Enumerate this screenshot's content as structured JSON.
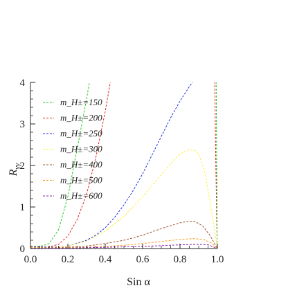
{
  "chart_data": {
    "type": "line",
    "xlabel": "Sin α",
    "ylabel": "R_γγ",
    "xlim": [
      0,
      1
    ],
    "ylim": [
      0,
      4
    ],
    "x_ticks": [
      "0.0",
      "0.2",
      "0.4",
      "0.6",
      "0.8",
      "1.0"
    ],
    "y_ticks": [
      "0",
      "1",
      "2",
      "3",
      "4"
    ],
    "grid": false,
    "legend_placement": "top-left",
    "series": [
      {
        "name": "m_H±=150",
        "color": "#22cc22",
        "x": [
          0,
          0.05,
          0.1,
          0.15,
          0.2,
          0.25,
          0.3,
          0.35
        ],
        "y": [
          0.06,
          0.05,
          0.12,
          0.45,
          1.25,
          2.4,
          3.6,
          4.9
        ]
      },
      {
        "name": "m_H±=200",
        "color": "#dd2222",
        "x": [
          0,
          0.05,
          0.1,
          0.15,
          0.2,
          0.25,
          0.3,
          0.35,
          0.4,
          0.45
        ],
        "y": [
          0.05,
          0.04,
          0.04,
          0.1,
          0.3,
          0.7,
          1.3,
          2.2,
          3.3,
          4.6
        ]
      },
      {
        "name": "m_H±=250",
        "color": "#2233dd",
        "x": [
          0,
          0.1,
          0.2,
          0.3,
          0.35,
          0.4,
          0.45,
          0.5,
          0.55,
          0.6,
          0.65,
          0.7,
          0.75,
          0.8,
          0.85,
          0.9,
          0.93,
          0.96
        ],
        "y": [
          0.04,
          0.03,
          0.06,
          0.2,
          0.32,
          0.5,
          0.75,
          1.05,
          1.4,
          1.8,
          2.25,
          2.7,
          3.15,
          3.55,
          3.9,
          4.2,
          4.5,
          4.9
        ]
      },
      {
        "name": "m_H±=300",
        "color": "#ffee44",
        "x": [
          0,
          0.1,
          0.2,
          0.3,
          0.4,
          0.5,
          0.6,
          0.7,
          0.75,
          0.8,
          0.85,
          0.88,
          0.9,
          0.93,
          0.96,
          1.0
        ],
        "y": [
          0.03,
          0.02,
          0.06,
          0.18,
          0.42,
          0.78,
          1.25,
          1.78,
          2.05,
          2.28,
          2.38,
          2.36,
          2.28,
          1.9,
          1.15,
          0
        ]
      },
      {
        "name": "m_H±=400",
        "color": "#a0522d",
        "x": [
          0,
          0.1,
          0.2,
          0.3,
          0.4,
          0.5,
          0.6,
          0.7,
          0.8,
          0.85,
          0.88,
          0.92,
          0.96,
          1.0
        ],
        "y": [
          0.02,
          0.02,
          0.03,
          0.06,
          0.12,
          0.2,
          0.32,
          0.48,
          0.62,
          0.66,
          0.65,
          0.55,
          0.32,
          0
        ]
      },
      {
        "name": "m_H±=500",
        "color": "#ff9922",
        "x": [
          0,
          0.1,
          0.2,
          0.3,
          0.4,
          0.5,
          0.6,
          0.7,
          0.8,
          0.88,
          0.93,
          0.97,
          1.0
        ],
        "y": [
          0.02,
          0.01,
          0.02,
          0.03,
          0.05,
          0.08,
          0.12,
          0.17,
          0.22,
          0.24,
          0.21,
          0.13,
          0
        ]
      },
      {
        "name": "m_H±=600",
        "color": "#8822aa",
        "x": [
          0,
          0.1,
          0.2,
          0.3,
          0.4,
          0.5,
          0.6,
          0.7,
          0.8,
          0.9,
          0.95,
          1.0
        ],
        "y": [
          0.01,
          0.01,
          0.01,
          0.02,
          0.03,
          0.04,
          0.05,
          0.07,
          0.09,
          0.1,
          0.09,
          0
        ]
      },
      {
        "name": "",
        "color": "#dd2222",
        "x": [
          0.985,
          0.988,
          0.991,
          0.994,
          0.996,
          0.998,
          1.0
        ],
        "y": [
          4.6,
          3.2,
          2.2,
          1.4,
          0.8,
          0.3,
          0
        ]
      },
      {
        "name": "",
        "color": "#22cc22",
        "x": [
          0.993,
          0.995,
          0.997,
          0.998,
          0.999,
          1.0
        ],
        "y": [
          4.6,
          3.0,
          1.6,
          0.8,
          0.3,
          0
        ]
      }
    ]
  }
}
